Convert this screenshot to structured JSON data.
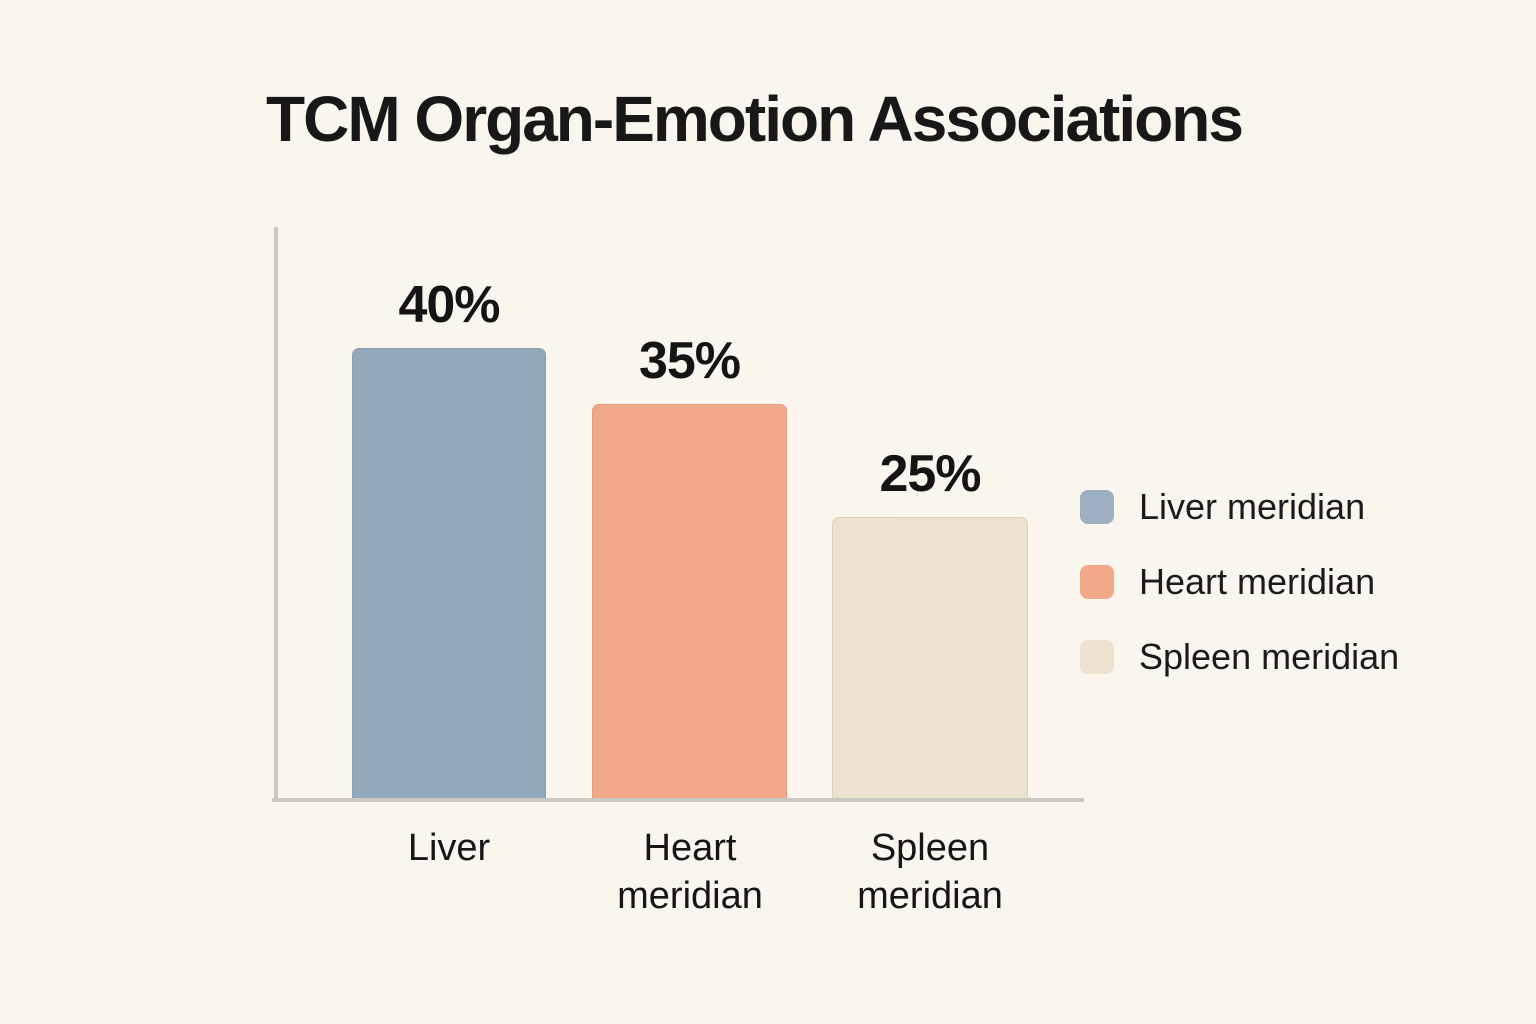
{
  "title": "TCM Organ-Emotion Associations",
  "colors": {
    "background": "#faf6ee",
    "axis": "#c9c8c2",
    "text": "#181818"
  },
  "chart_data": {
    "type": "bar",
    "title": "TCM Organ-Emotion Associations",
    "categories": [
      "Liver",
      "Heart meridian",
      "Spleen meridian"
    ],
    "values": [
      40,
      35,
      25
    ],
    "value_labels": [
      "40%",
      "35%",
      "25%"
    ],
    "unit": "%",
    "xlabel": "",
    "ylabel": "",
    "ylim": [
      0,
      50
    ],
    "grid": false,
    "axis_ticks_visible": false,
    "legend_position": "right",
    "bar_colors": [
      "#92a9bc",
      "#f2a98a",
      "#ece2cf"
    ],
    "legend": [
      {
        "label": "Liver meridian",
        "color": "#9cb0c1"
      },
      {
        "label": "Heart meridian",
        "color": "#f2a98a"
      },
      {
        "label": "Spleen meridian",
        "color": "#ece2cf"
      }
    ]
  }
}
